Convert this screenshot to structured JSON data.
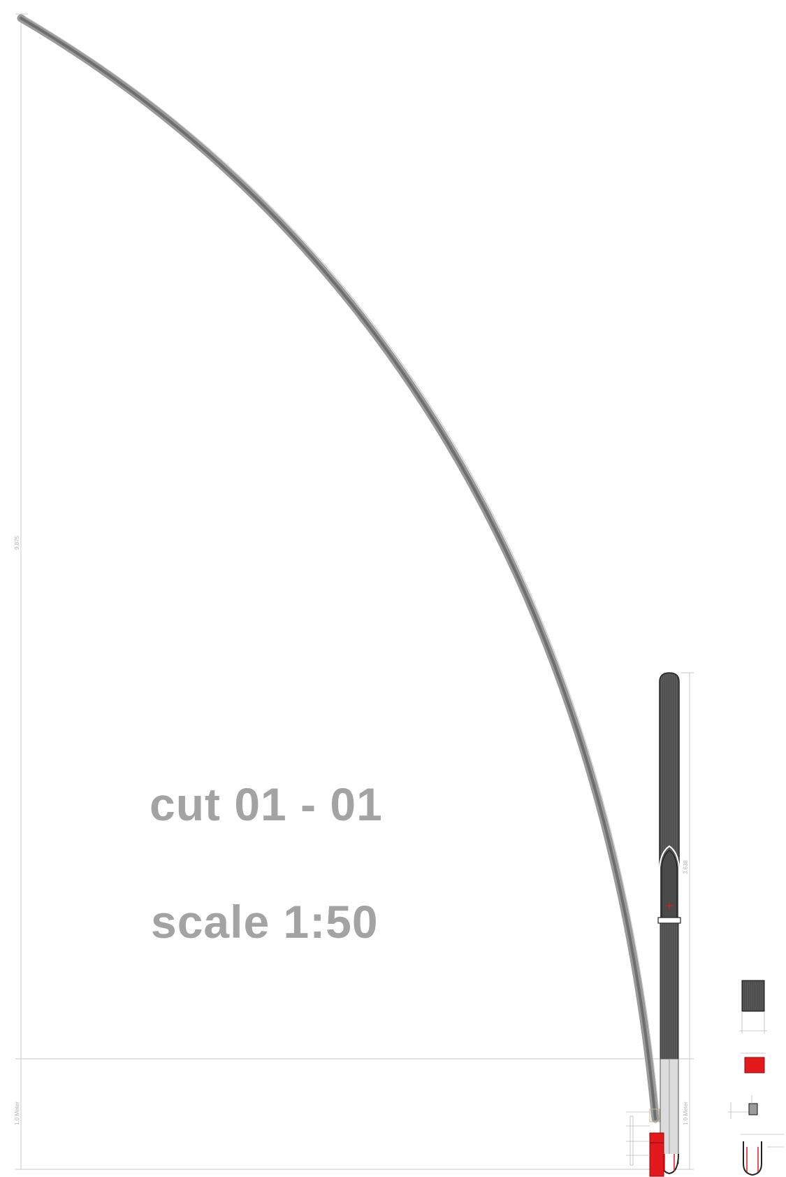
{
  "title": {
    "cut": "cut 01 - 01",
    "scale": "scale 1:50"
  },
  "dimensions": {
    "total_height": "9.875",
    "ground_height": "1.0 Meter",
    "pole_height": "3.638",
    "pole_ground_height": "1.0 Meter"
  },
  "colors": {
    "background": "#ffffff",
    "label_gray": "#a3a3a3",
    "dimension_line": "#c8c8c8",
    "rod_fill": "#8c8c8c",
    "pole_fill": "#555555",
    "accent_red": "#e3191b"
  }
}
